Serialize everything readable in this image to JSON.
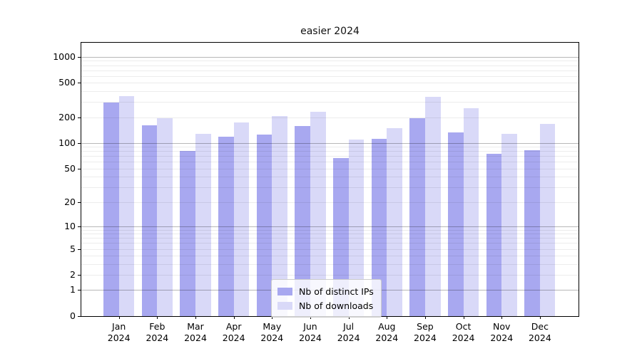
{
  "title": "easier 2024",
  "legend": {
    "items": [
      {
        "label": "Nb of distinct IPs",
        "color": "#a8a8f0"
      },
      {
        "label": "Nb of downloads",
        "color": "#d9d9f8"
      }
    ]
  },
  "x_axis": {
    "year": "2024",
    "months": [
      "Jan",
      "Feb",
      "Mar",
      "Apr",
      "May",
      "Jun",
      "Jul",
      "Aug",
      "Sep",
      "Oct",
      "Nov",
      "Dec"
    ]
  },
  "y_axis": {
    "ticks": [
      {
        "value": 1000,
        "label": "1000"
      },
      {
        "value": 500,
        "label": "500"
      },
      {
        "value": 200,
        "label": "200"
      },
      {
        "value": 100,
        "label": "100"
      },
      {
        "value": 50,
        "label": "50"
      },
      {
        "value": 20,
        "label": "20"
      },
      {
        "value": 10,
        "label": "10"
      },
      {
        "value": 5,
        "label": "5"
      },
      {
        "value": 2,
        "label": "2"
      },
      {
        "value": 1,
        "label": "1"
      },
      {
        "value": 0,
        "label": "0"
      }
    ]
  },
  "chart_data": {
    "type": "bar",
    "title": "easier 2024",
    "categories": [
      "Jan 2024",
      "Feb 2024",
      "Mar 2024",
      "Apr 2024",
      "May 2024",
      "Jun 2024",
      "Jul 2024",
      "Aug 2024",
      "Sep 2024",
      "Oct 2024",
      "Nov 2024",
      "Dec 2024"
    ],
    "series": [
      {
        "name": "Nb of distinct IPs",
        "color": "#a8a8f0",
        "values": [
          297,
          161,
          81,
          119,
          125,
          158,
          67,
          112,
          195,
          133,
          74,
          82
        ]
      },
      {
        "name": "Nb of downloads",
        "color": "#d9d9f8",
        "values": [
          352,
          193,
          128,
          173,
          205,
          230,
          109,
          149,
          346,
          252,
          127,
          167
        ]
      }
    ],
    "xlabel": "",
    "ylabel": "",
    "yscale": "log1p",
    "ylim": [
      0,
      1460
    ],
    "yticks": [
      0,
      1,
      2,
      5,
      10,
      20,
      50,
      100,
      200,
      500,
      1000
    ],
    "grid": "horizontal major and minor gridlines, drawn above bars",
    "legend_position": "lower center inside plot"
  }
}
